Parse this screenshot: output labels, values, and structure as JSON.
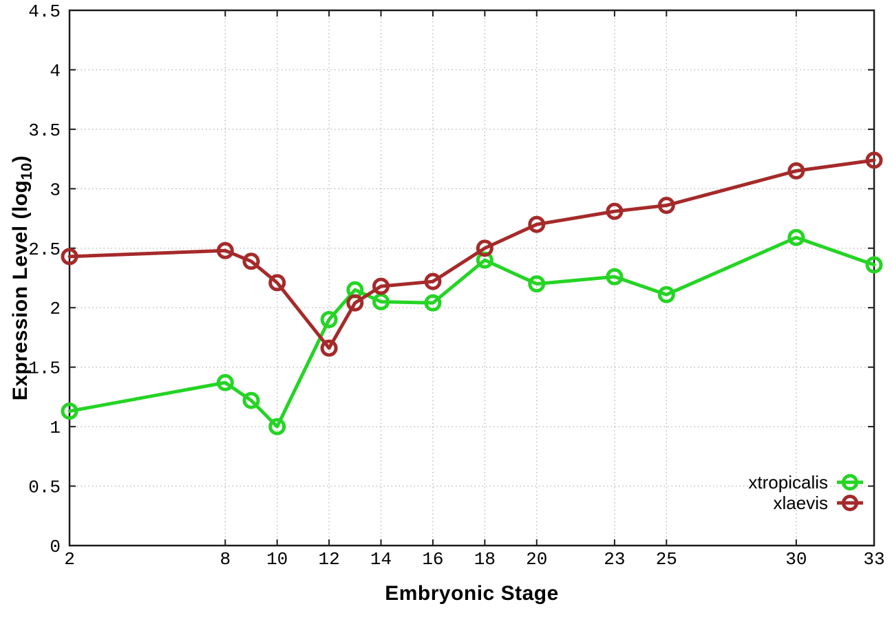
{
  "colors": {
    "grid": "#b8b8b8",
    "axis": "#1c1c1c",
    "text": "#000000",
    "xtropicalis_green": "#25d425",
    "xlaevis_red": "#a52a2a"
  },
  "axis_titles": {
    "x": "Embryonic Stage",
    "y_main": "Expression Level (log",
    "y_sub": "10",
    "y_end": ")"
  },
  "chart_data": {
    "type": "line",
    "title": "",
    "xlabel": "Embryonic Stage",
    "ylabel": "Expression Level (log10)",
    "x": [
      2,
      8,
      9,
      10,
      12,
      13,
      14,
      16,
      18,
      20,
      23,
      25,
      30,
      33
    ],
    "xticks": [
      "2",
      "8",
      "10",
      "12",
      "14",
      "16",
      "18",
      "20",
      "23",
      "25",
      "30",
      "33"
    ],
    "yticks": [
      "0",
      "0.5",
      "1",
      "1.5",
      "2",
      "2.5",
      "3",
      "3.5",
      "4",
      "4.5"
    ],
    "xlim": [
      2,
      33
    ],
    "ylim": [
      0,
      4.5
    ],
    "grid": true,
    "tick_style": "mirrored-inward",
    "marker": "open-circle",
    "legend_position": "bottom-right-inside",
    "series": [
      {
        "name": "xtropicalis",
        "color": "#25d425",
        "values": [
          1.13,
          1.37,
          1.22,
          1.0,
          1.9,
          2.15,
          2.05,
          2.04,
          2.4,
          2.2,
          2.26,
          2.11,
          2.59,
          2.36
        ]
      },
      {
        "name": "xlaevis",
        "color": "#a52a2a",
        "values": [
          2.43,
          2.48,
          2.39,
          2.21,
          1.66,
          2.04,
          2.18,
          2.22,
          2.5,
          2.7,
          2.81,
          2.86,
          3.15,
          3.24
        ]
      }
    ]
  }
}
